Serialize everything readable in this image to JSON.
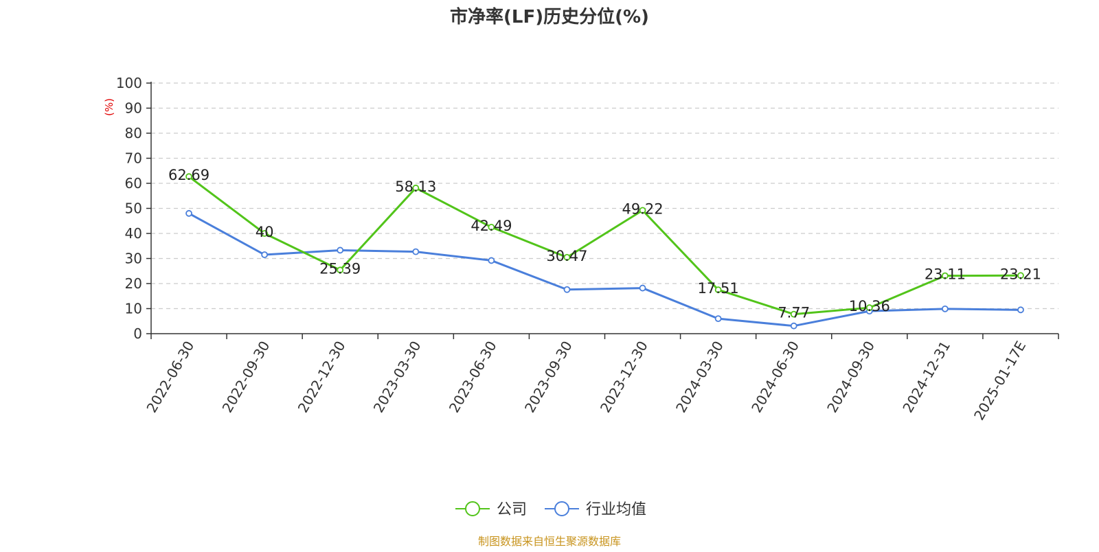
{
  "chart_data": {
    "type": "line",
    "title": "市净率(LF)历史分位(%)",
    "ylabel": "(%)",
    "ylim": [
      0,
      100
    ],
    "yticks": [
      0,
      10,
      20,
      30,
      40,
      50,
      60,
      70,
      80,
      90,
      100
    ],
    "categories": [
      "2022-06-30",
      "2022-09-30",
      "2022-12-30",
      "2023-03-30",
      "2023-06-30",
      "2023-09-30",
      "2023-12-30",
      "2024-03-30",
      "2024-06-30",
      "2024-09-30",
      "2024-12-31",
      "2025-01-17E"
    ],
    "series": [
      {
        "name": "公司",
        "color": "#52c41a",
        "values": [
          62.69,
          40,
          25.39,
          58.13,
          42.49,
          30.47,
          49.22,
          17.51,
          7.77,
          10.36,
          23.11,
          23.21
        ],
        "labels": [
          "62.69",
          "40",
          "25.39",
          "58.13",
          "42.49",
          "30.47",
          "49.22",
          "17.51",
          "7.77",
          "10.36",
          "23.11",
          "23.21"
        ]
      },
      {
        "name": "行业均值",
        "color": "#4a7fdb",
        "values": [
          48,
          31.5,
          33.3,
          32.7,
          29.2,
          17.6,
          18.2,
          6,
          3.1,
          9,
          9.9,
          9.5
        ]
      }
    ],
    "grid": true,
    "legend_position": "bottom-center",
    "ylabel_color": "#e00000"
  },
  "source_note": "制图数据来自恒生聚源数据库",
  "source_color": "#c8941e"
}
